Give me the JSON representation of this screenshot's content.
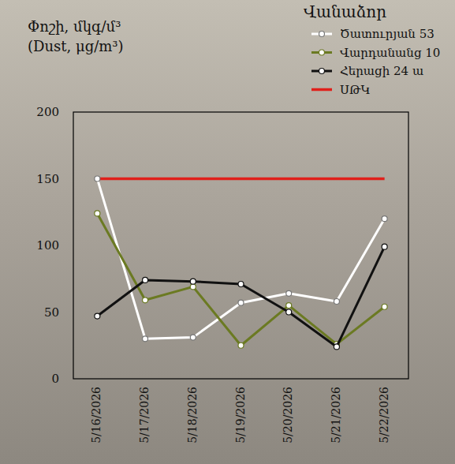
{
  "chart_data": {
    "type": "line",
    "title": "Փոշի, մկգ/մ³",
    "subtitle": "(Dust, μg/m³)",
    "legend_title": "Վանաձոր",
    "categories": [
      "5/16/2026",
      "5/17/2026",
      "5/18/2026",
      "5/19/2026",
      "5/20/2026",
      "5/21/2026",
      "5/22/2026"
    ],
    "series": [
      {
        "name": "Ծատուրյան 53",
        "color": "#ffffff",
        "marker": "circle",
        "values": [
          150,
          30,
          31,
          57,
          64,
          58,
          120
        ]
      },
      {
        "name": "Վարդանանց 10",
        "color": "#6b7a22",
        "marker": "circle",
        "values": [
          124,
          59,
          69,
          25,
          55,
          26,
          54
        ]
      },
      {
        "name": "Հերացի 24 ա",
        "color": "#111111",
        "marker": "circle",
        "values": [
          47,
          74,
          73,
          71,
          50,
          24,
          99
        ]
      },
      {
        "name": "ՍԹԿ",
        "color": "#e0201b",
        "marker": "none",
        "values": [
          150,
          150,
          150,
          150,
          150,
          150,
          150
        ]
      }
    ],
    "ylim": [
      0,
      200
    ],
    "yticks": [
      0,
      50,
      100,
      150,
      200
    ],
    "grid": false,
    "legend": "top-right"
  }
}
